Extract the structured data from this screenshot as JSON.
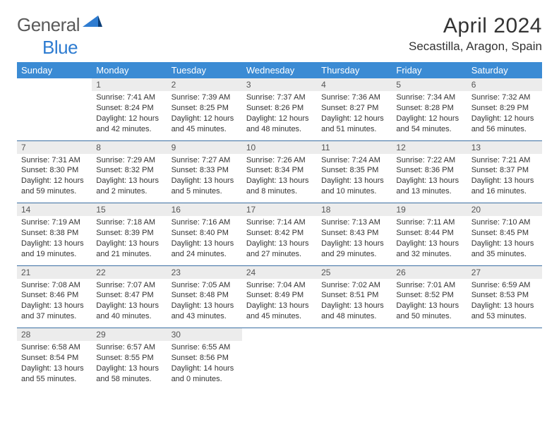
{
  "logo": {
    "word1": "General",
    "word2": "Blue"
  },
  "title": "April 2024",
  "location": "Secastilla, Aragon, Spain",
  "colors": {
    "header_bg": "#3b8bd4",
    "header_text": "#ffffff",
    "daynum_bg": "#ececec",
    "daynum_text": "#555555",
    "body_text": "#333333",
    "rule": "#3b6fa3",
    "logo_gray": "#5a5a5a",
    "logo_blue": "#2e7cd1"
  },
  "weekdays": [
    "Sunday",
    "Monday",
    "Tuesday",
    "Wednesday",
    "Thursday",
    "Friday",
    "Saturday"
  ],
  "weeks": [
    [
      null,
      {
        "n": "1",
        "sr": "7:41 AM",
        "ss": "8:24 PM",
        "dl": "12 hours and 42 minutes."
      },
      {
        "n": "2",
        "sr": "7:39 AM",
        "ss": "8:25 PM",
        "dl": "12 hours and 45 minutes."
      },
      {
        "n": "3",
        "sr": "7:37 AM",
        "ss": "8:26 PM",
        "dl": "12 hours and 48 minutes."
      },
      {
        "n": "4",
        "sr": "7:36 AM",
        "ss": "8:27 PM",
        "dl": "12 hours and 51 minutes."
      },
      {
        "n": "5",
        "sr": "7:34 AM",
        "ss": "8:28 PM",
        "dl": "12 hours and 54 minutes."
      },
      {
        "n": "6",
        "sr": "7:32 AM",
        "ss": "8:29 PM",
        "dl": "12 hours and 56 minutes."
      }
    ],
    [
      {
        "n": "7",
        "sr": "7:31 AM",
        "ss": "8:30 PM",
        "dl": "12 hours and 59 minutes."
      },
      {
        "n": "8",
        "sr": "7:29 AM",
        "ss": "8:32 PM",
        "dl": "13 hours and 2 minutes."
      },
      {
        "n": "9",
        "sr": "7:27 AM",
        "ss": "8:33 PM",
        "dl": "13 hours and 5 minutes."
      },
      {
        "n": "10",
        "sr": "7:26 AM",
        "ss": "8:34 PM",
        "dl": "13 hours and 8 minutes."
      },
      {
        "n": "11",
        "sr": "7:24 AM",
        "ss": "8:35 PM",
        "dl": "13 hours and 10 minutes."
      },
      {
        "n": "12",
        "sr": "7:22 AM",
        "ss": "8:36 PM",
        "dl": "13 hours and 13 minutes."
      },
      {
        "n": "13",
        "sr": "7:21 AM",
        "ss": "8:37 PM",
        "dl": "13 hours and 16 minutes."
      }
    ],
    [
      {
        "n": "14",
        "sr": "7:19 AM",
        "ss": "8:38 PM",
        "dl": "13 hours and 19 minutes."
      },
      {
        "n": "15",
        "sr": "7:18 AM",
        "ss": "8:39 PM",
        "dl": "13 hours and 21 minutes."
      },
      {
        "n": "16",
        "sr": "7:16 AM",
        "ss": "8:40 PM",
        "dl": "13 hours and 24 minutes."
      },
      {
        "n": "17",
        "sr": "7:14 AM",
        "ss": "8:42 PM",
        "dl": "13 hours and 27 minutes."
      },
      {
        "n": "18",
        "sr": "7:13 AM",
        "ss": "8:43 PM",
        "dl": "13 hours and 29 minutes."
      },
      {
        "n": "19",
        "sr": "7:11 AM",
        "ss": "8:44 PM",
        "dl": "13 hours and 32 minutes."
      },
      {
        "n": "20",
        "sr": "7:10 AM",
        "ss": "8:45 PM",
        "dl": "13 hours and 35 minutes."
      }
    ],
    [
      {
        "n": "21",
        "sr": "7:08 AM",
        "ss": "8:46 PM",
        "dl": "13 hours and 37 minutes."
      },
      {
        "n": "22",
        "sr": "7:07 AM",
        "ss": "8:47 PM",
        "dl": "13 hours and 40 minutes."
      },
      {
        "n": "23",
        "sr": "7:05 AM",
        "ss": "8:48 PM",
        "dl": "13 hours and 43 minutes."
      },
      {
        "n": "24",
        "sr": "7:04 AM",
        "ss": "8:49 PM",
        "dl": "13 hours and 45 minutes."
      },
      {
        "n": "25",
        "sr": "7:02 AM",
        "ss": "8:51 PM",
        "dl": "13 hours and 48 minutes."
      },
      {
        "n": "26",
        "sr": "7:01 AM",
        "ss": "8:52 PM",
        "dl": "13 hours and 50 minutes."
      },
      {
        "n": "27",
        "sr": "6:59 AM",
        "ss": "8:53 PM",
        "dl": "13 hours and 53 minutes."
      }
    ],
    [
      {
        "n": "28",
        "sr": "6:58 AM",
        "ss": "8:54 PM",
        "dl": "13 hours and 55 minutes."
      },
      {
        "n": "29",
        "sr": "6:57 AM",
        "ss": "8:55 PM",
        "dl": "13 hours and 58 minutes."
      },
      {
        "n": "30",
        "sr": "6:55 AM",
        "ss": "8:56 PM",
        "dl": "14 hours and 0 minutes."
      },
      null,
      null,
      null,
      null
    ]
  ],
  "labels": {
    "sunrise": "Sunrise:",
    "sunset": "Sunset:",
    "daylight": "Daylight:"
  }
}
